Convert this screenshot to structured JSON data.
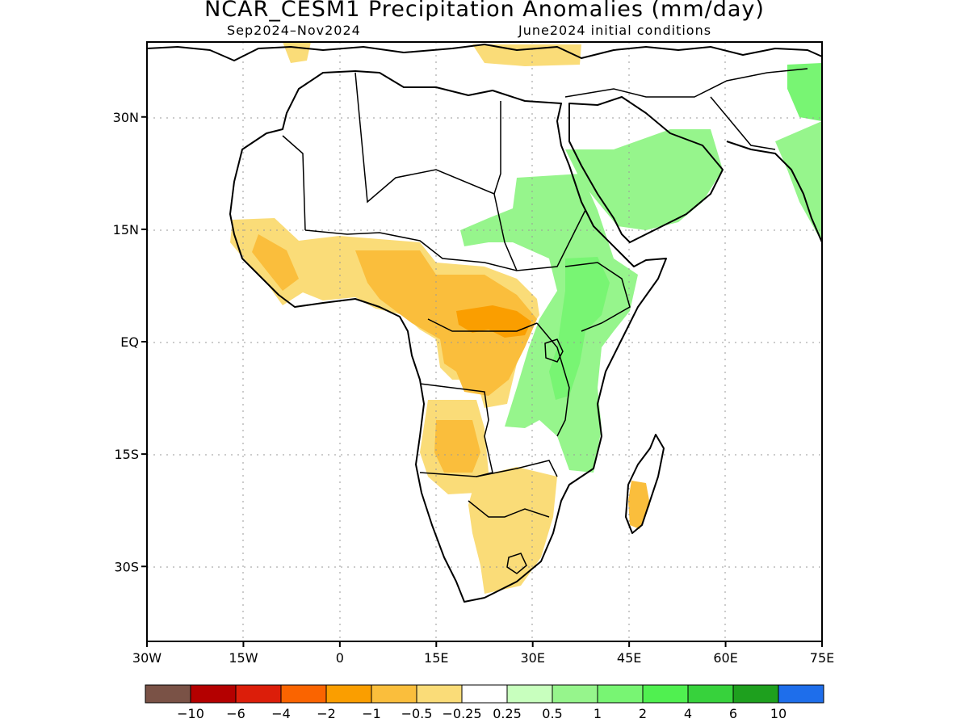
{
  "title": "NCAR_CESM1 Precipitation Anomalies (mm/day)",
  "subtitle_left": "Sep2024–Nov2024",
  "subtitle_right": "June2024 initial conditions",
  "map": {
    "lon_range": [
      -30,
      75
    ],
    "lat_range": [
      -40,
      40
    ],
    "x_ticks": [
      {
        "lon": -30,
        "label": "30W"
      },
      {
        "lon": -15,
        "label": "15W"
      },
      {
        "lon": 0,
        "label": "0"
      },
      {
        "lon": 15,
        "label": "15E"
      },
      {
        "lon": 30,
        "label": "30E"
      },
      {
        "lon": 45,
        "label": "45E"
      },
      {
        "lon": 60,
        "label": "60E"
      },
      {
        "lon": 75,
        "label": "75E"
      }
    ],
    "y_ticks": [
      {
        "lat": 30,
        "label": "30N"
      },
      {
        "lat": 15,
        "label": "15N"
      },
      {
        "lat": 0,
        "label": "EQ"
      },
      {
        "lat": -15,
        "label": "15S"
      },
      {
        "lat": -30,
        "label": "30S"
      }
    ],
    "grid": "dotted"
  },
  "colorbar": {
    "colors": [
      "#7a5246",
      "#b40000",
      "#dc1e0a",
      "#fa6400",
      "#fa9e00",
      "#fabe3c",
      "#fadc78",
      "#ffffff",
      "#c8ffbe",
      "#96f58c",
      "#78f573",
      "#50f050",
      "#37d23c",
      "#1ea01e",
      "#1e6eeb"
    ],
    "labels": [
      "−10",
      "−6",
      "−4",
      "−2",
      "−1",
      "−0.5",
      "−0.25",
      "0.25",
      "0.5",
      "1",
      "2",
      "4",
      "6",
      "10"
    ]
  }
}
